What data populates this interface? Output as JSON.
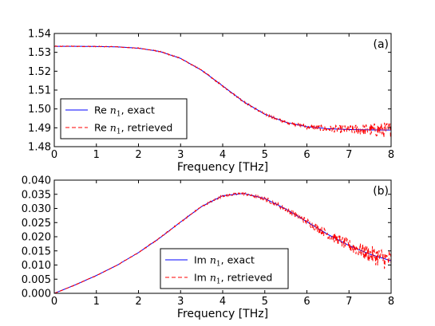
{
  "chart_data": [
    {
      "type": "line",
      "panel_label": "(a)",
      "xlabel": "Frequency [THz]",
      "ylabel": "",
      "xlim": [
        0,
        8
      ],
      "ylim": [
        1.48,
        1.54
      ],
      "x_ticks": [
        "0",
        "1",
        "2",
        "3",
        "4",
        "5",
        "6",
        "7",
        "8"
      ],
      "y_ticks": [
        "1.48",
        "1.49",
        "1.50",
        "1.51",
        "1.52",
        "1.53",
        "1.54"
      ],
      "legend_position": "lower-left",
      "x": [
        0,
        0.5,
        1,
        1.5,
        2,
        2.5,
        3,
        3.5,
        4,
        4.5,
        5,
        5.5,
        6,
        6.5,
        7,
        7.5,
        8
      ],
      "series": [
        {
          "name": "Re n1, exact",
          "legend_prefix": "Re ",
          "legend_suffix": ", exact",
          "color": "#0000ff",
          "style": "solid",
          "values": [
            1.5332,
            1.5332,
            1.5331,
            1.5329,
            1.5322,
            1.5305,
            1.5268,
            1.5205,
            1.5122,
            1.5038,
            1.4972,
            1.4929,
            1.4906,
            1.4895,
            1.4891,
            1.4889,
            1.4888
          ]
        },
        {
          "name": "Re n1, retrieved",
          "legend_prefix": "Re ",
          "legend_suffix": ", retrieved",
          "color": "#ff0000",
          "style": "dashed",
          "noise_amplitude": [
            0.0002,
            0.0002,
            0.0002,
            0.0002,
            0.0002,
            0.0003,
            0.0003,
            0.0004,
            0.0004,
            0.0005,
            0.0006,
            0.0008,
            0.0012,
            0.0017,
            0.0024,
            0.0034,
            0.0045
          ],
          "values": [
            1.5332,
            1.5332,
            1.5331,
            1.5329,
            1.5322,
            1.5305,
            1.5268,
            1.5205,
            1.5122,
            1.5038,
            1.4972,
            1.4929,
            1.4906,
            1.4895,
            1.4891,
            1.4889,
            1.4888
          ]
        }
      ]
    },
    {
      "type": "line",
      "panel_label": "(b)",
      "xlabel": "Frequency [THz]",
      "ylabel": "",
      "xlim": [
        0,
        8
      ],
      "ylim": [
        0,
        0.04
      ],
      "x_ticks": [
        "0",
        "1",
        "2",
        "3",
        "4",
        "5",
        "6",
        "7",
        "8"
      ],
      "y_ticks": [
        "0.000",
        "0.005",
        "0.010",
        "0.015",
        "0.020",
        "0.025",
        "0.030",
        "0.035",
        "0.040"
      ],
      "legend_position": "lower-center",
      "x": [
        0,
        0.5,
        1,
        1.5,
        2,
        2.5,
        3,
        3.5,
        4,
        4.5,
        5,
        5.5,
        6,
        6.5,
        7,
        7.5,
        8
      ],
      "series": [
        {
          "name": "Im n1, exact",
          "legend_prefix": "Im ",
          "legend_suffix": ", exact",
          "color": "#0000ff",
          "style": "solid",
          "values": [
            0.0,
            0.003,
            0.0063,
            0.01,
            0.0144,
            0.0195,
            0.0252,
            0.0307,
            0.0345,
            0.0353,
            0.0335,
            0.0298,
            0.0253,
            0.0208,
            0.0169,
            0.0138,
            0.0115
          ]
        },
        {
          "name": "Im n1, retrieved",
          "legend_prefix": "Im ",
          "legend_suffix": ", retrieved",
          "color": "#ff0000",
          "style": "dashed",
          "noise_amplitude": [
            0.0001,
            0.0001,
            0.0001,
            0.0001,
            0.00015,
            0.0002,
            0.00025,
            0.0003,
            0.0004,
            0.0005,
            0.0007,
            0.0009,
            0.0012,
            0.0016,
            0.0022,
            0.003,
            0.004
          ],
          "values": [
            0.0,
            0.003,
            0.0063,
            0.01,
            0.0144,
            0.0195,
            0.0252,
            0.0307,
            0.0345,
            0.0353,
            0.0335,
            0.0298,
            0.0253,
            0.0208,
            0.0169,
            0.0138,
            0.0115
          ]
        }
      ]
    }
  ]
}
